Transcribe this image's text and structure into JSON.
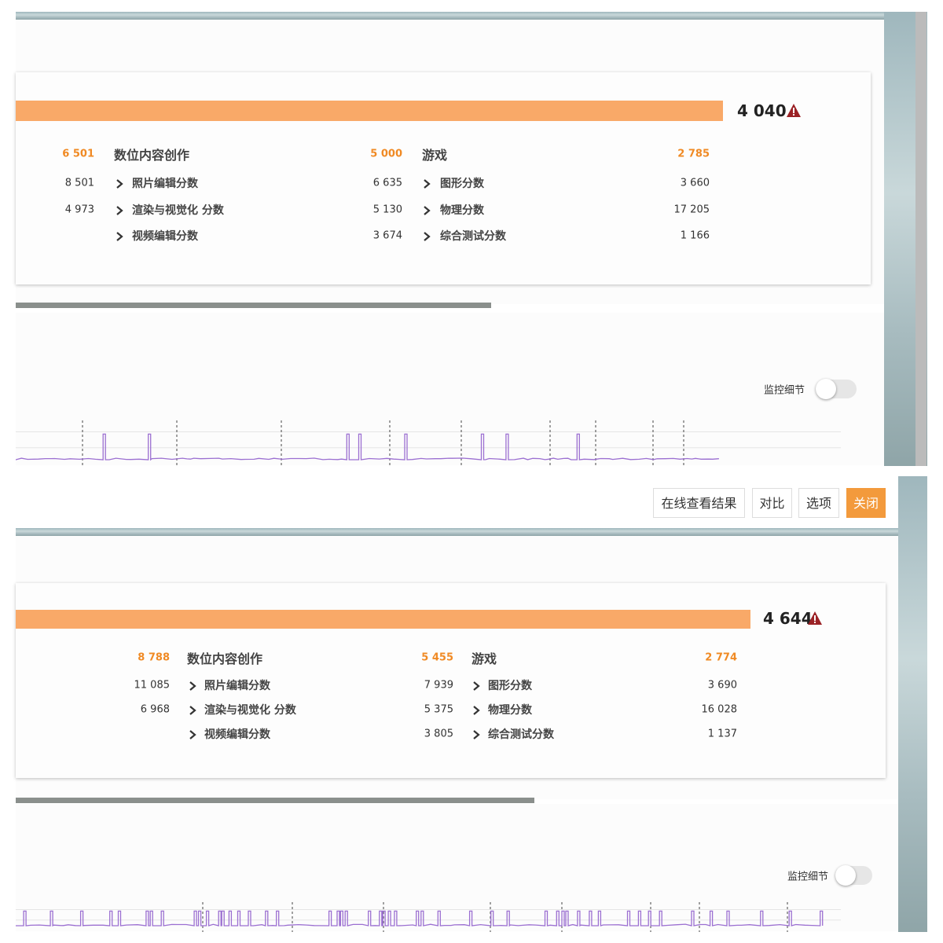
{
  "panels": [
    {
      "score": "4 040",
      "header": [
        "6 501",
        "数位内容创作",
        "5 000",
        "游戏",
        "2 785"
      ],
      "rows": [
        [
          "8 501",
          "照片编辑分数",
          "6 635",
          "图形分数",
          "3 660"
        ],
        [
          "4 973",
          "渲染与视觉化 分数",
          "5 130",
          "物理分数",
          "17 205"
        ],
        [
          null,
          "视频编辑分数",
          "3 674",
          "综合测试分数",
          "1 166"
        ]
      ],
      "monitor_label": "监控细节"
    },
    {
      "score": "4 644",
      "header": [
        "8 788",
        "数位内容创作",
        "5 455",
        "游戏",
        "2 774"
      ],
      "rows": [
        [
          "11 085",
          "照片编辑分数",
          "7 939",
          "图形分数",
          "3 690"
        ],
        [
          "6 968",
          "渲染与视觉化 分数",
          "5 375",
          "物理分数",
          "16 028"
        ],
        [
          null,
          "视频编辑分数",
          "3 805",
          "综合测试分数",
          "1 137"
        ]
      ],
      "monitor_label": "监控细节"
    }
  ],
  "buttons": [
    "在线查看结果",
    "对比",
    "选项",
    "关闭"
  ]
}
